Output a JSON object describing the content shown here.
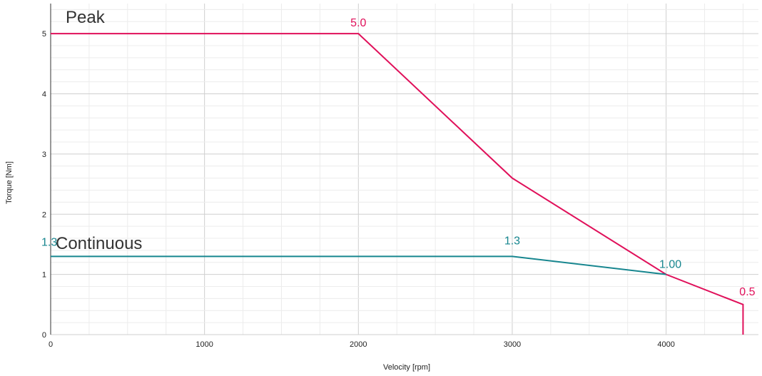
{
  "chart_data": {
    "type": "line",
    "xlabel": "Velocity [rpm]",
    "ylabel": "Torque [Nm]",
    "xlim": [
      0,
      4600
    ],
    "ylim": [
      0,
      5.5
    ],
    "x_ticks": [
      "0",
      "1000",
      "2000",
      "3000",
      "4000"
    ],
    "y_ticks": [
      "0",
      "1",
      "2",
      "3",
      "4",
      "5"
    ],
    "grid": true,
    "series": [
      {
        "name": "Peak",
        "color": "#e0105a",
        "points": [
          [
            0,
            5.0
          ],
          [
            2000,
            5.0
          ],
          [
            3000,
            2.6
          ],
          [
            4000,
            1.0
          ],
          [
            4500,
            0.5
          ],
          [
            4500,
            0
          ]
        ]
      },
      {
        "name": "Continuous",
        "color": "#17868f",
        "points": [
          [
            0,
            1.3
          ],
          [
            3000,
            1.3
          ],
          [
            4000,
            1.0
          ]
        ]
      }
    ],
    "annotations": [
      {
        "text": "5.0",
        "x": 2000,
        "y": 5.0,
        "color": "#e0105a"
      },
      {
        "text": "1.3",
        "x": 0,
        "y": 1.3,
        "color": "#17868f"
      },
      {
        "text": "1.3",
        "x": 3000,
        "y": 1.3,
        "color": "#17868f"
      },
      {
        "text": "1.00",
        "x": 4000,
        "y": 1.0,
        "color": "#17868f"
      },
      {
        "text": "0.5",
        "x": 4500,
        "y": 0.5,
        "color": "#e0105a"
      }
    ]
  }
}
